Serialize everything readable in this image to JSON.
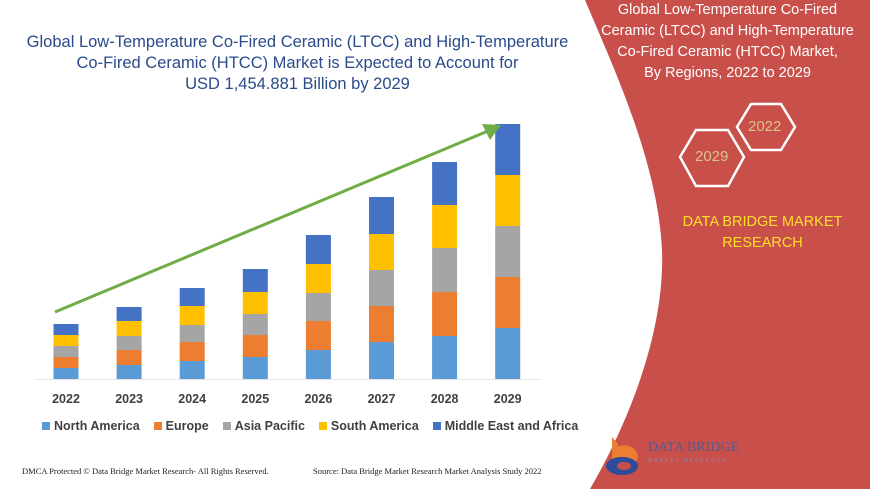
{
  "left_title": [
    "Global Low-Temperature Co-Fired Ceramic (LTCC) and High-Temperature",
    "Co-Fired Ceramic (HTCC) Market is Expected to Account for",
    "USD 1,454.881 Billion by 2029"
  ],
  "right_panel": {
    "title": [
      "Global Low-Temperature Co-Fired",
      "Ceramic (LTCC) and High-Temperature",
      "Co-Fired Ceramic (HTCC) Market,",
      "By Regions, 2022 to 2029"
    ],
    "hex_start": "2022",
    "hex_end": "2029",
    "brand": [
      "DATA BRIDGE MARKET",
      "RESEARCH"
    ],
    "logo_text": "DATA BRIDGE",
    "logo_sub": "MARKET RESEARCH",
    "color": "#c94f4a"
  },
  "footer": {
    "left": "DMCA Protected © Data Bridge Market Research- All Rights Reserved.",
    "right": "Source: Data Bridge Market Research Market Analysis Study 2022"
  },
  "chart_data": {
    "type": "bar",
    "stacked": true,
    "categories": [
      "2022",
      "2023",
      "2024",
      "2025",
      "2026",
      "2027",
      "2028",
      "2029"
    ],
    "series": [
      {
        "name": "North America",
        "color": "#5b9bd5",
        "values": [
          11,
          14,
          18,
          22,
          29,
          37,
          43,
          51
        ]
      },
      {
        "name": "Europe",
        "color": "#ed7d31",
        "values": [
          11,
          15,
          19,
          22,
          29,
          36,
          44,
          51
        ]
      },
      {
        "name": "Asia Pacific",
        "color": "#a5a5a5",
        "values": [
          11,
          14,
          17,
          21,
          28,
          36,
          44,
          51
        ]
      },
      {
        "name": "South America",
        "color": "#ffc000",
        "values": [
          11,
          15,
          19,
          22,
          29,
          36,
          43,
          51
        ]
      },
      {
        "name": "Middle East and Africa",
        "color": "#4472c4",
        "values": [
          11,
          14,
          18,
          23,
          29,
          37,
          43,
          51
        ]
      }
    ],
    "trend_arrow": true,
    "trend_color": "#70ad47",
    "axis_values_shown": false,
    "grid": false,
    "legend_placement": "bottom"
  }
}
